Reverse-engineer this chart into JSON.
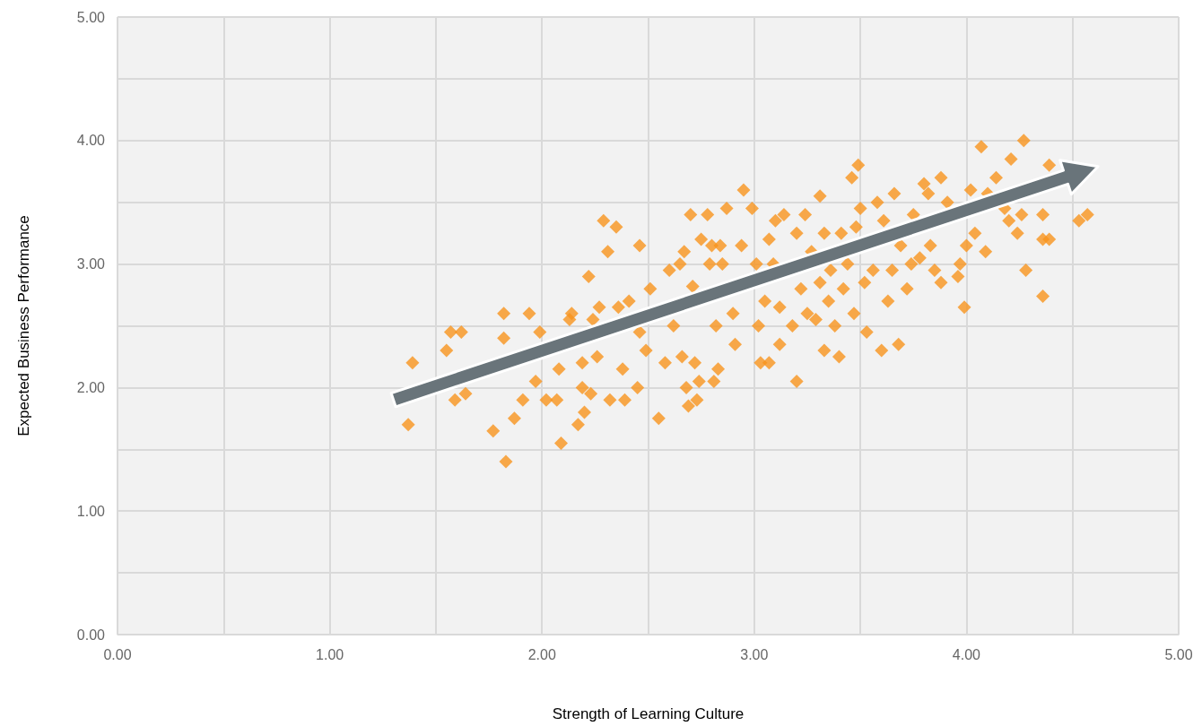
{
  "chart_data": {
    "type": "scatter",
    "xlabel": "Strength of Learning Culture",
    "ylabel": "Expected Business Performance",
    "marker": "diamond",
    "grid": true,
    "xlim": [
      0,
      5
    ],
    "ylim": [
      0,
      5
    ],
    "xticks": [
      {
        "value": 0,
        "label": "0.00"
      },
      {
        "value": 0.5,
        "label": null
      },
      {
        "value": 1,
        "label": "1.00"
      },
      {
        "value": 1.5,
        "label": null
      },
      {
        "value": 2,
        "label": "2.00"
      },
      {
        "value": 2.5,
        "label": null
      },
      {
        "value": 3,
        "label": "3.00"
      },
      {
        "value": 3.5,
        "label": null
      },
      {
        "value": 4,
        "label": "4.00"
      },
      {
        "value": 4.5,
        "label": null
      },
      {
        "value": 5,
        "label": "5.00"
      }
    ],
    "yticks": [
      {
        "value": 0,
        "label": "0.00"
      },
      {
        "value": 0.5,
        "label": null
      },
      {
        "value": 1,
        "label": "1.00"
      },
      {
        "value": 1.5,
        "label": null
      },
      {
        "value": 2,
        "label": "2.00"
      },
      {
        "value": 2.5,
        "label": null
      },
      {
        "value": 3,
        "label": "3.00"
      },
      {
        "value": 3.5,
        "label": null
      },
      {
        "value": 4,
        "label": "4.00"
      },
      {
        "value": 4.5,
        "label": null
      },
      {
        "value": 5,
        "label": "5.00"
      }
    ],
    "series": [
      {
        "color": "#f7941d",
        "x": [
          1.37,
          1.39,
          1.55,
          1.57,
          1.62,
          1.59,
          1.64,
          1.77,
          1.83,
          1.82,
          1.82,
          1.87,
          1.91,
          1.94,
          1.97,
          1.99,
          2.02,
          2.07,
          2.08,
          2.09,
          2.13,
          2.14,
          2.17,
          2.19,
          2.2,
          2.19,
          2.22,
          2.23,
          2.24,
          2.26,
          2.27,
          2.29,
          2.31,
          2.32,
          2.35,
          2.36,
          2.38,
          2.39,
          2.41,
          2.45,
          2.46,
          2.46,
          2.49,
          2.51,
          2.55,
          2.58,
          2.6,
          2.62,
          2.65,
          2.66,
          2.67,
          2.68,
          2.69,
          2.7,
          2.71,
          2.72,
          2.73,
          2.74,
          2.75,
          2.78,
          2.79,
          2.8,
          2.81,
          2.82,
          2.83,
          2.84,
          2.85,
          2.87,
          2.9,
          2.91,
          2.94,
          2.95,
          2.99,
          3.01,
          3.02,
          3.03,
          3.05,
          3.07,
          3.07,
          3.09,
          3.1,
          3.12,
          3.12,
          3.14,
          3.18,
          3.2,
          3.2,
          3.22,
          3.24,
          3.25,
          3.27,
          3.29,
          3.31,
          3.31,
          3.33,
          3.33,
          3.35,
          3.36,
          3.38,
          3.4,
          3.41,
          3.42,
          3.44,
          3.46,
          3.47,
          3.48,
          3.49,
          3.5,
          3.52,
          3.53,
          3.56,
          3.58,
          3.6,
          3.61,
          3.63,
          3.65,
          3.66,
          3.68,
          3.69,
          3.72,
          3.74,
          3.75,
          3.78,
          3.8,
          3.82,
          3.83,
          3.85,
          3.88,
          3.88,
          3.91,
          3.96,
          3.97,
          3.99,
          4.0,
          4.02,
          4.04,
          4.07,
          4.09,
          4.1,
          4.14,
          4.18,
          4.2,
          4.21,
          4.24,
          4.27,
          4.26,
          4.28,
          4.36,
          4.36,
          4.36,
          4.39,
          4.39,
          4.53,
          4.57
        ],
        "values": [
          1.7,
          2.2,
          2.3,
          2.45,
          2.45,
          1.9,
          1.95,
          1.65,
          1.4,
          2.6,
          2.4,
          1.75,
          1.9,
          2.6,
          2.05,
          2.45,
          1.9,
          1.9,
          2.15,
          1.55,
          2.55,
          2.6,
          1.7,
          2.0,
          1.8,
          2.2,
          2.9,
          1.95,
          2.55,
          2.25,
          2.65,
          3.35,
          3.1,
          1.9,
          3.3,
          2.65,
          2.15,
          1.9,
          2.7,
          2.0,
          3.15,
          2.45,
          2.3,
          2.8,
          1.75,
          2.2,
          2.95,
          2.5,
          3.0,
          2.25,
          3.1,
          2.0,
          1.85,
          3.4,
          2.82,
          2.2,
          1.9,
          2.05,
          3.2,
          3.4,
          3.0,
          3.15,
          2.05,
          2.5,
          2.15,
          3.15,
          3.0,
          3.45,
          2.6,
          2.35,
          3.15,
          3.6,
          3.45,
          3.0,
          2.5,
          2.2,
          2.7,
          2.2,
          3.2,
          3.0,
          3.35,
          2.35,
          2.65,
          3.4,
          2.5,
          3.25,
          2.05,
          2.8,
          3.4,
          2.6,
          3.1,
          2.55,
          3.55,
          2.85,
          2.3,
          3.25,
          2.7,
          2.95,
          2.5,
          2.25,
          3.25,
          2.8,
          3.0,
          3.7,
          2.6,
          3.3,
          3.8,
          3.45,
          2.85,
          2.45,
          2.95,
          3.5,
          2.3,
          3.35,
          2.7,
          2.95,
          3.57,
          2.35,
          3.15,
          2.8,
          3.0,
          3.4,
          3.05,
          3.65,
          3.57,
          3.15,
          2.95,
          3.7,
          2.85,
          3.5,
          2.9,
          3.0,
          2.65,
          3.15,
          3.6,
          3.25,
          3.95,
          3.1,
          3.57,
          3.7,
          3.45,
          3.35,
          3.85,
          3.25,
          4.0,
          3.4,
          2.95,
          3.4,
          3.2,
          2.74,
          3.8,
          3.2,
          3.35,
          3.4
        ]
      }
    ]
  }
}
